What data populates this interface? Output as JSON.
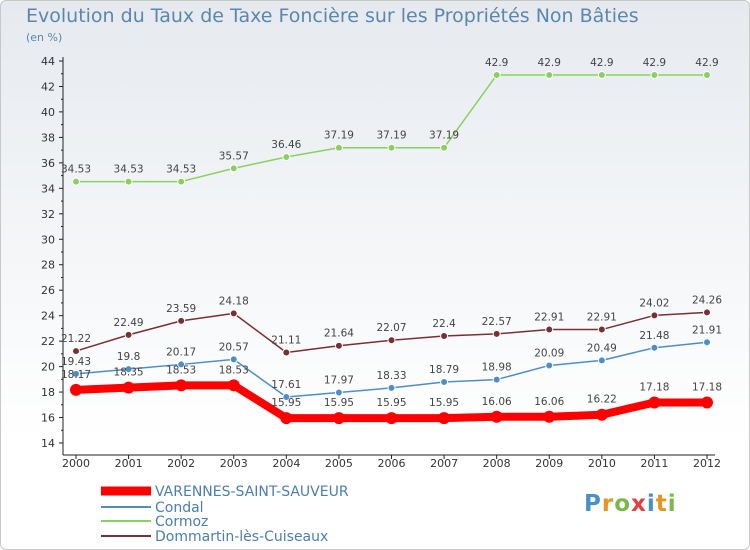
{
  "header": {
    "title": "Evolution du Taux de Taxe Foncière sur les Propriétés Non Bâties",
    "unit": "(en %)"
  },
  "logo": {
    "text": "Proxiti"
  },
  "chart_data": {
    "type": "line",
    "x": [
      "2000",
      "2001",
      "2002",
      "2003",
      "2004",
      "2005",
      "2006",
      "2007",
      "2008",
      "2009",
      "2010",
      "2011",
      "2012"
    ],
    "ylim": [
      14,
      44
    ],
    "yticks": [
      14,
      16,
      18,
      20,
      22,
      24,
      26,
      28,
      30,
      32,
      34,
      36,
      38,
      40,
      42,
      44
    ],
    "grid": false,
    "legend_position": "bottom-left",
    "series": [
      {
        "name": "VARENNES-SAINT-SAUVEUR",
        "color": "#ff0000",
        "values": [
          18.17,
          18.35,
          18.53,
          18.53,
          15.95,
          15.95,
          15.95,
          15.95,
          16.06,
          16.06,
          16.22,
          17.18,
          17.18
        ],
        "labels": [
          "18.17",
          "18.35",
          "18.53",
          "18.53",
          "15.95",
          "15.95",
          "15.95",
          "15.95",
          "16.06",
          "16.06",
          "16.22",
          "17.18",
          "17.18"
        ]
      },
      {
        "name": "Condal",
        "color": "#4d8ec9",
        "values": [
          19.43,
          19.8,
          20.17,
          20.57,
          17.61,
          17.97,
          18.33,
          18.79,
          18.98,
          20.09,
          20.49,
          21.48,
          21.91
        ],
        "labels": [
          "19.43",
          "19.8",
          "20.17",
          "20.57",
          "17.61",
          "17.97",
          "18.33",
          "18.79",
          "18.98",
          "20.09",
          "20.49",
          "21.48",
          "21.91"
        ]
      },
      {
        "name": "Cormoz",
        "color": "#88d160",
        "values": [
          34.53,
          34.53,
          34.53,
          35.57,
          36.46,
          37.19,
          37.19,
          37.19,
          42.9,
          42.9,
          42.9,
          42.9,
          42.9
        ],
        "labels": [
          "34.53",
          "34.53",
          "34.53",
          "35.57",
          "36.46",
          "37.19",
          "37.19",
          "37.19",
          "42.9",
          "42.9",
          "42.9",
          "42.9",
          "42.9"
        ]
      },
      {
        "name": "Dommartin-lès-Cuiseaux",
        "color": "#7a2e35",
        "values": [
          21.22,
          22.49,
          23.59,
          24.18,
          21.11,
          21.64,
          22.07,
          22.4,
          22.57,
          22.91,
          22.91,
          24.02,
          24.26
        ],
        "labels": [
          "21.22",
          "22.49",
          "23.59",
          "24.18",
          "21.11",
          "21.64",
          "22.07",
          "22.4",
          "22.57",
          "22.91",
          "22.91",
          "24.02",
          "24.26"
        ]
      }
    ]
  }
}
